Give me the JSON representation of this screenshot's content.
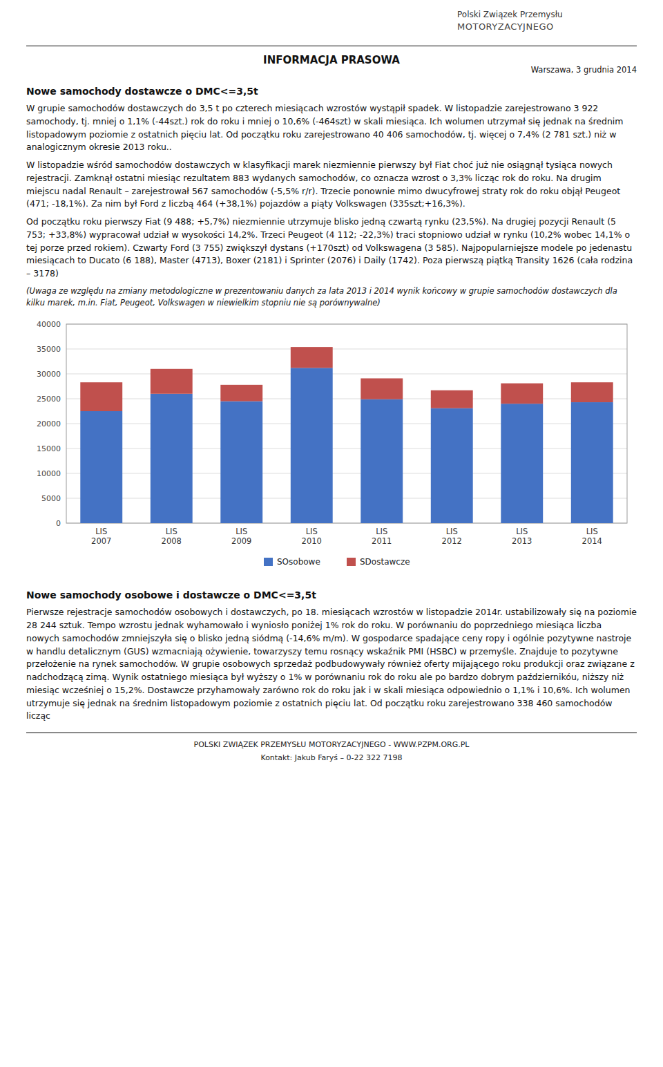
{
  "header": {
    "logo_line1": "Polski Związek Przemysłu",
    "logo_line2": "MOTORYZACYJNEGO",
    "title": "INFORMACJA PRASOWA",
    "date": "Warszawa, 3 grudnia 2014"
  },
  "section1": {
    "title": "Nowe samochody dostawcze o DMC<=3,5t",
    "paragraphs": [
      "W grupie samochodów dostawczych do 3,5 t po czterech miesiącach wzrostów wystąpił spadek. W listopadzie zarejestrowano 3 922 samochody, tj. mniej o 1,1% (-44szt.) rok do roku i mniej o 10,6% (-464szt) w skali miesiąca. Ich wolumen utrzymał się jednak na średnim listopadowym poziomie z ostatnich pięciu lat. Od początku roku zarejestrowano 40 406 samochodów, tj. więcej o 7,4% (2 781 szt.) niż w analogicznym okresie 2013 roku..",
      "W listopadzie wśród samochodów dostawczych w klasyfikacji marek niezmiennie pierwszy był Fiat choć już nie osiągnął tysiąca nowych rejestracji. Zamknął ostatni miesiąc rezultatem 883 wydanych samochodów, co oznacza wzrost o 3,3% licząc rok do roku. Na drugim miejscu nadal Renault – zarejestrował 567 samochodów (-5,5% r/r). Trzecie ponownie mimo dwucyfrowej straty rok do roku objął Peugeot (471; -18,1%). Za nim był Ford z liczbą 464 (+38,1%) pojazdów a piąty Volkswagen (335szt;+16,3%).",
      "Od początku roku pierwszy Fiat (9 488; +5,7%) niezmiennie utrzymuje blisko jedną czwartą rynku (23,5%). Na drugiej pozycji Renault (5 753; +33,8%) wypracował udział w wysokości 14,2%. Trzeci Peugeot (4 112; -22,3%) traci stopniowo udział w rynku (10,2% wobec 14,1% o tej porze przed rokiem). Czwarty Ford (3 755) zwiększył dystans (+170szt) od Volkswagena (3 585). Najpopularniejsze modele po jedenastu miesiącach to Ducato (6 188), Master (4713), Boxer (2181) i Sprinter (2076) i Daily (1742). Poza pierwszą piątką Transity 1626 (cała rodzina – 3178)"
    ],
    "note": "(Uwaga ze względu na zmiany metodologiczne w prezentowaniu danych za lata 2013 i 2014 wynik końcowy w grupie samochodów dostawczych dla kilku marek, m.in. Fiat, Peugeot, Volkswagen w niewielkim stopniu nie są porównywalne)"
  },
  "chart_data": {
    "type": "bar",
    "stacked": true,
    "categories": [
      "LIS\n2007",
      "LIS\n2008",
      "LIS\n2009",
      "LIS\n2010",
      "LIS\n2011",
      "LIS\n2012",
      "LIS\n2013",
      "LIS\n2014"
    ],
    "series": [
      {
        "name": "SOsobowe",
        "color": "#4472C4",
        "values": [
          22500,
          26000,
          24500,
          31200,
          24900,
          23100,
          24000,
          24300
        ]
      },
      {
        "name": "SDostawcze",
        "color": "#C0504D",
        "values": [
          5800,
          5000,
          3300,
          4200,
          4200,
          3600,
          4100,
          4000
        ]
      }
    ],
    "ylim": [
      0,
      40000
    ],
    "yticks": [
      0,
      5000,
      10000,
      15000,
      20000,
      25000,
      30000,
      35000,
      40000
    ],
    "grid": true,
    "legend": "bottom"
  },
  "section2": {
    "title": "Nowe samochody osobowe i dostawcze o DMC<=3,5t",
    "body": "Pierwsze rejestracje samochodów osobowych i dostawczych, po 18. miesiącach wzrostów w listopadzie 2014r. ustabilizowały się na poziomie 28 244 sztuk. Tempo wzrostu jednak wyhamowało i wyniosło poniżej 1% rok do roku. W porównaniu do poprzedniego miesiąca liczba nowych samochodów zmniejszyła się o blisko jedną siódmą (-14,6% m/m). W gospodarce spadające ceny ropy i ogólnie pozytywne nastroje w handlu detalicznym (GUS) wzmacniają ożywienie, towarzyszy temu rosnący wskaźnik PMI (HSBC) w przemyśle. Znajduje to pozytywne przełożenie na rynek samochodów. W grupie osobowych sprzedaż podbudowywały również oferty mijającego roku produkcji oraz związane z nadchodzącą zimą. Wynik ostatniego miesiąca był wyższy o 1% w porównaniu rok do roku ale po bardzo dobrym październikóu, niższy niż miesiąc wcześniej o 15,2%. Dostawcze przyhamowały zarówno rok do roku jak i w skali miesiąca odpowiednio o 1,1% i 10,6%. Ich wolumen utrzymuje się jednak na średnim listopadowym poziomie z ostatnich pięciu lat. Od początku roku zarejestrowano 338 460 samochodów licząc"
  },
  "footer": {
    "line1": "POLSKI ZWIĄZEK PRZEMYSŁU MOTORYZACYJNEGO - WWW.PZPM.ORG.PL",
    "line2": "Kontakt: Jakub Faryś – 0-22 322 7198"
  }
}
